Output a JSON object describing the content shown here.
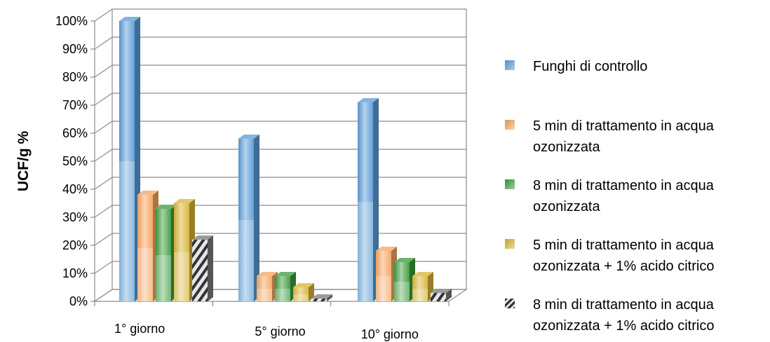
{
  "chart_data": {
    "type": "bar",
    "ylabel": "UCF/g %",
    "xlabel": "",
    "ylim": [
      0,
      100
    ],
    "ytick_step": 10,
    "y_format": "percent",
    "categories": [
      "1° giorno",
      "5° giorno",
      "10° giorno"
    ],
    "series": [
      {
        "name": "Funghi di controllo",
        "values": [
          100,
          58,
          71
        ],
        "color": "#5b9bd5"
      },
      {
        "name": "5 min di trattamento in acqua ozonizzata",
        "values": [
          38,
          9,
          18
        ],
        "color": "#f4a460"
      },
      {
        "name": "8 min di trattamento in acqua ozonizzata",
        "values": [
          33,
          9,
          14
        ],
        "color": "#3c9a3c"
      },
      {
        "name": "5 min di trattamento in acqua ozonizzata + 1% acido citrico",
        "values": [
          35,
          5,
          9
        ],
        "color": "#d8b437"
      },
      {
        "name": "8 min di trattamento in acqua ozonizzata + 1% acido citrico",
        "values": [
          22,
          1,
          3
        ],
        "color": "#7a7a7a",
        "pattern": "striped"
      }
    ],
    "legend_position": "right",
    "grid": true
  }
}
